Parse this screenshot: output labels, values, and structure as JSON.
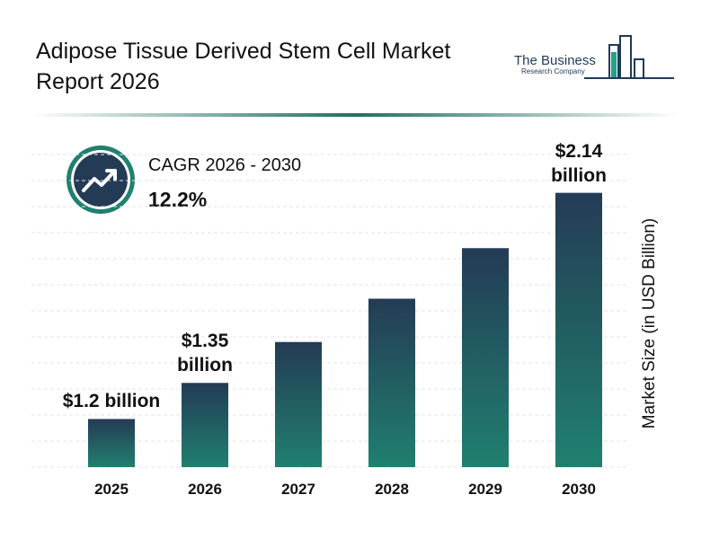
{
  "chart_data": {
    "type": "bar",
    "title": "Adipose Tissue Derived Stem Cell Market Report 2026",
    "brand": [
      "The Business",
      "Research Company"
    ],
    "cagr_label": "CAGR 2026 - 2030",
    "cagr_value": "12.2%",
    "y_axis_label": "Market Size (in USD Billion)",
    "categories": [
      "2025",
      "2026",
      "2027",
      "2028",
      "2029",
      "2030"
    ],
    "values": [
      1.2,
      1.35,
      1.52,
      1.7,
      1.91,
      2.14
    ],
    "value_labels": [
      "$1.2 billion",
      "$1.35 billion",
      null,
      null,
      null,
      "$2.14 billion"
    ],
    "colors": [
      "#243b55",
      "#20806f"
    ],
    "ylim": [
      1.0,
      2.4
    ],
    "grid": true
  }
}
